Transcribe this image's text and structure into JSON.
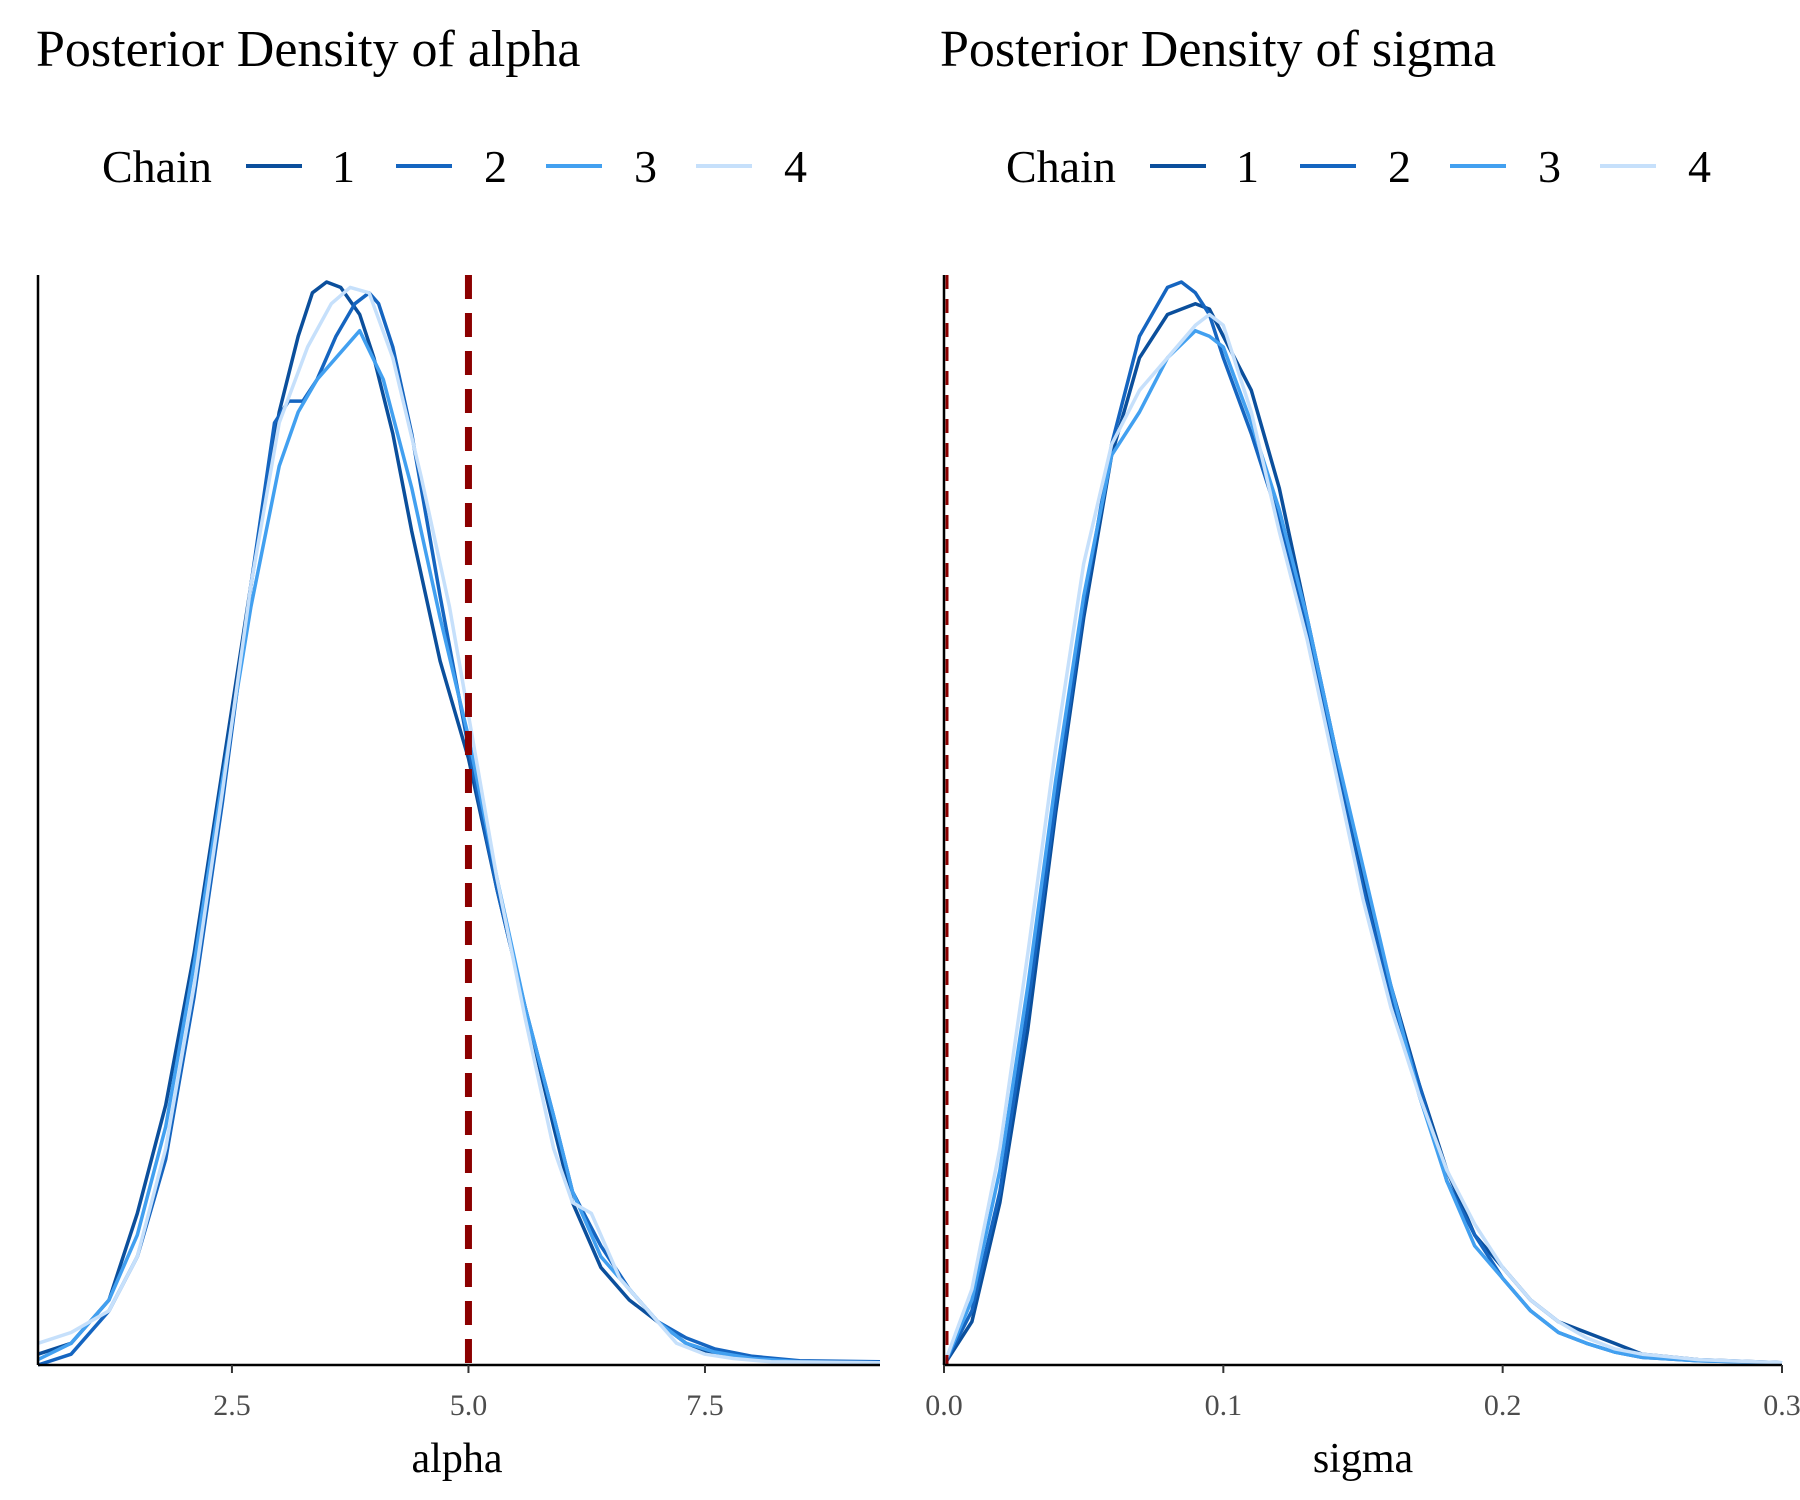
{
  "legend": {
    "title": "Chain",
    "entries": [
      "1",
      "2",
      "3",
      "4"
    ],
    "colors": [
      "#0b4f9c",
      "#1565c0",
      "#42a0f0",
      "#c6e0fb"
    ]
  },
  "reference_line_color": "#8b0000",
  "chart_data": [
    {
      "type": "line",
      "subtype": "density",
      "title": "Posterior Density of alpha",
      "xlabel": "alpha",
      "ylabel": "",
      "xlim": [
        0.45,
        9.35
      ],
      "ylim": [
        0,
        1.0
      ],
      "x_ticks": [
        2.5,
        5.0,
        7.5
      ],
      "x_tick_labels": [
        "2.5",
        "5.0",
        "7.5"
      ],
      "y_axis_ticks": "none",
      "grid": false,
      "legend_position": "top",
      "reference_line": {
        "x": 5.0,
        "style": "dashed"
      },
      "series": [
        {
          "name": "1",
          "x": [
            0.45,
            0.8,
            1.2,
            1.5,
            1.8,
            2.1,
            2.4,
            2.7,
            3.0,
            3.2,
            3.35,
            3.5,
            3.65,
            3.85,
            4.0,
            4.2,
            4.4,
            4.7,
            5.0,
            5.3,
            5.6,
            5.9,
            6.1,
            6.4,
            6.7,
            7.0,
            7.3,
            7.6,
            8.0,
            8.5,
            9.35
          ],
          "y": [
            0.01,
            0.02,
            0.06,
            0.14,
            0.24,
            0.38,
            0.55,
            0.72,
            0.88,
            0.95,
            0.99,
            1.0,
            0.995,
            0.97,
            0.93,
            0.86,
            0.77,
            0.65,
            0.56,
            0.44,
            0.33,
            0.22,
            0.15,
            0.09,
            0.06,
            0.04,
            0.02,
            0.01,
            0.005,
            0.003,
            0.002
          ]
        },
        {
          "name": "2",
          "x": [
            0.45,
            0.8,
            1.2,
            1.5,
            1.8,
            2.1,
            2.4,
            2.7,
            2.95,
            3.1,
            3.25,
            3.4,
            3.6,
            3.8,
            3.95,
            4.05,
            4.2,
            4.4,
            4.7,
            5.0,
            5.3,
            5.6,
            5.9,
            6.1,
            6.4,
            6.7,
            7.0,
            7.3,
            7.6,
            8.0,
            8.5,
            9.35
          ],
          "y": [
            0.0,
            0.01,
            0.05,
            0.1,
            0.19,
            0.34,
            0.52,
            0.72,
            0.87,
            0.89,
            0.89,
            0.91,
            0.95,
            0.98,
            0.99,
            0.98,
            0.94,
            0.86,
            0.71,
            0.57,
            0.44,
            0.33,
            0.23,
            0.16,
            0.11,
            0.07,
            0.04,
            0.025,
            0.015,
            0.008,
            0.004,
            0.003
          ]
        },
        {
          "name": "3",
          "x": [
            0.45,
            0.8,
            1.2,
            1.5,
            1.8,
            2.1,
            2.4,
            2.7,
            3.0,
            3.2,
            3.4,
            3.6,
            3.85,
            4.1,
            4.4,
            4.7,
            5.0,
            5.3,
            5.6,
            5.9,
            6.1,
            6.4,
            6.7,
            7.0,
            7.3,
            7.6,
            8.0,
            8.5,
            9.35
          ],
          "y": [
            0.005,
            0.02,
            0.06,
            0.12,
            0.22,
            0.37,
            0.54,
            0.7,
            0.83,
            0.88,
            0.91,
            0.93,
            0.955,
            0.91,
            0.81,
            0.69,
            0.58,
            0.45,
            0.33,
            0.23,
            0.16,
            0.1,
            0.07,
            0.04,
            0.02,
            0.012,
            0.006,
            0.003,
            0.002
          ]
        },
        {
          "name": "4",
          "x": [
            0.45,
            0.8,
            1.2,
            1.5,
            1.8,
            2.1,
            2.4,
            2.7,
            3.0,
            3.3,
            3.55,
            3.75,
            3.95,
            4.2,
            4.5,
            4.8,
            5.0,
            5.3,
            5.6,
            5.9,
            6.1,
            6.3,
            6.6,
            6.9,
            7.2,
            7.5,
            7.8,
            8.2,
            9.35
          ],
          "y": [
            0.02,
            0.03,
            0.05,
            0.1,
            0.2,
            0.35,
            0.53,
            0.72,
            0.87,
            0.94,
            0.98,
            0.995,
            0.99,
            0.93,
            0.82,
            0.7,
            0.6,
            0.45,
            0.32,
            0.2,
            0.15,
            0.14,
            0.08,
            0.05,
            0.02,
            0.01,
            0.006,
            0.003,
            0.002
          ]
        }
      ]
    },
    {
      "type": "line",
      "subtype": "density",
      "title": "Posterior Density of sigma",
      "xlabel": "sigma",
      "ylabel": "",
      "xlim": [
        0.0,
        0.3
      ],
      "ylim": [
        0,
        1.0
      ],
      "x_ticks": [
        0.0,
        0.1,
        0.2,
        0.3
      ],
      "x_tick_labels": [
        "0.0",
        "0.1",
        "0.2",
        "0.3"
      ],
      "y_axis_ticks": "none",
      "grid": false,
      "legend_position": "top",
      "reference_line": {
        "x": 0.0,
        "style": "dashed"
      },
      "series": [
        {
          "name": "1",
          "x": [
            0.0,
            0.01,
            0.02,
            0.03,
            0.04,
            0.05,
            0.06,
            0.07,
            0.08,
            0.085,
            0.09,
            0.095,
            0.1,
            0.11,
            0.12,
            0.13,
            0.14,
            0.15,
            0.16,
            0.17,
            0.18,
            0.19,
            0.2,
            0.21,
            0.22,
            0.23,
            0.24,
            0.25,
            0.27,
            0.3
          ],
          "y": [
            0.0,
            0.04,
            0.15,
            0.31,
            0.51,
            0.69,
            0.84,
            0.93,
            0.97,
            0.975,
            0.98,
            0.975,
            0.95,
            0.9,
            0.81,
            0.69,
            0.57,
            0.45,
            0.35,
            0.26,
            0.18,
            0.12,
            0.09,
            0.06,
            0.04,
            0.03,
            0.02,
            0.01,
            0.005,
            0.002
          ]
        },
        {
          "name": "2",
          "x": [
            0.0,
            0.01,
            0.02,
            0.03,
            0.04,
            0.05,
            0.06,
            0.07,
            0.08,
            0.085,
            0.09,
            0.095,
            0.1,
            0.11,
            0.12,
            0.13,
            0.14,
            0.15,
            0.16,
            0.17,
            0.18,
            0.19,
            0.2,
            0.21,
            0.22,
            0.23,
            0.24,
            0.25,
            0.27,
            0.3
          ],
          "y": [
            0.0,
            0.05,
            0.16,
            0.33,
            0.52,
            0.7,
            0.85,
            0.95,
            0.995,
            1.0,
            0.99,
            0.97,
            0.93,
            0.86,
            0.78,
            0.68,
            0.56,
            0.44,
            0.34,
            0.26,
            0.17,
            0.12,
            0.08,
            0.05,
            0.03,
            0.02,
            0.012,
            0.007,
            0.004,
            0.002
          ]
        },
        {
          "name": "3",
          "x": [
            0.0,
            0.01,
            0.02,
            0.03,
            0.04,
            0.05,
            0.06,
            0.07,
            0.08,
            0.09,
            0.095,
            0.1,
            0.11,
            0.12,
            0.13,
            0.14,
            0.15,
            0.16,
            0.17,
            0.18,
            0.19,
            0.2,
            0.21,
            0.22,
            0.23,
            0.24,
            0.25,
            0.27,
            0.3
          ],
          "y": [
            0.0,
            0.06,
            0.18,
            0.35,
            0.54,
            0.71,
            0.84,
            0.88,
            0.93,
            0.955,
            0.95,
            0.94,
            0.87,
            0.79,
            0.69,
            0.57,
            0.46,
            0.35,
            0.25,
            0.17,
            0.11,
            0.08,
            0.05,
            0.03,
            0.02,
            0.012,
            0.007,
            0.004,
            0.002
          ]
        },
        {
          "name": "4",
          "x": [
            0.0,
            0.01,
            0.02,
            0.03,
            0.04,
            0.05,
            0.06,
            0.07,
            0.08,
            0.09,
            0.095,
            0.1,
            0.11,
            0.12,
            0.13,
            0.14,
            0.15,
            0.16,
            0.17,
            0.18,
            0.19,
            0.2,
            0.21,
            0.22,
            0.23,
            0.24,
            0.25,
            0.27,
            0.3
          ],
          "y": [
            0.0,
            0.07,
            0.2,
            0.38,
            0.57,
            0.74,
            0.85,
            0.9,
            0.93,
            0.96,
            0.97,
            0.96,
            0.88,
            0.77,
            0.67,
            0.55,
            0.43,
            0.33,
            0.25,
            0.18,
            0.13,
            0.09,
            0.06,
            0.04,
            0.025,
            0.015,
            0.01,
            0.005,
            0.002
          ]
        }
      ]
    }
  ]
}
